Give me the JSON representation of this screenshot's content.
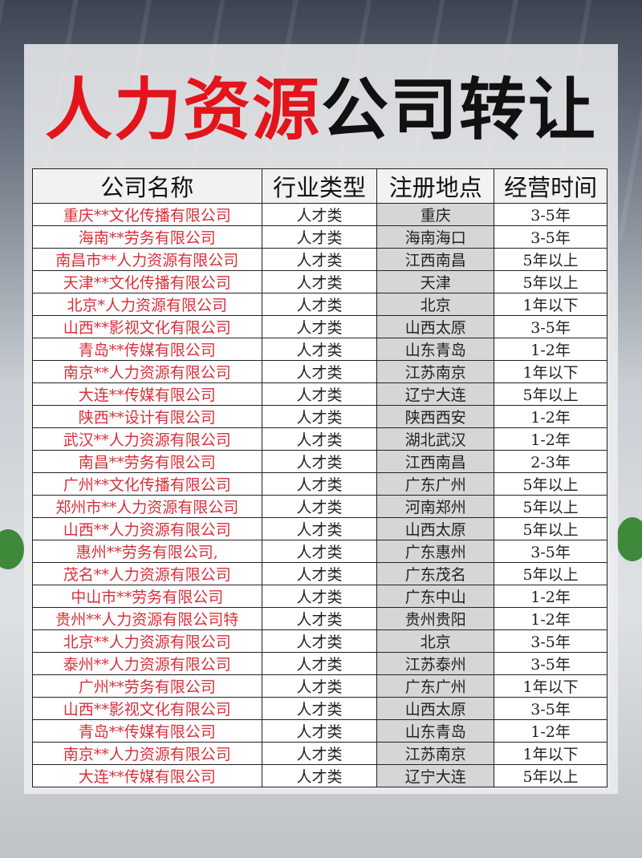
{
  "title": {
    "part1": "人力资源",
    "part2": "公司转让"
  },
  "colors": {
    "title_red": "#e3141b",
    "name_red": "#d8303a",
    "location_bg": "#d6d6d6"
  },
  "table": {
    "headers": [
      "公司名称",
      "行业类型",
      "注册地点",
      "经营时间"
    ],
    "rows": [
      [
        "重庆**文化传播有限公司",
        "人才类",
        "重庆",
        "3-5年"
      ],
      [
        "海南**劳务有限公司",
        "人才类",
        "海南海口",
        "3-5年"
      ],
      [
        "南昌市**人力资源有限公司",
        "人才类",
        "江西南昌",
        "5年以上"
      ],
      [
        "天津**文化传播有限公司",
        "人才类",
        "天津",
        "5年以上"
      ],
      [
        "北京*人力资源有限公司",
        "人才类",
        "北京",
        "1年以下"
      ],
      [
        "山西**影视文化有限公司",
        "人才类",
        "山西太原",
        "3-5年"
      ],
      [
        "青岛**传媒有限公司",
        "人才类",
        "山东青岛",
        "1-2年"
      ],
      [
        "南京**人力资源有限公司",
        "人才类",
        "江苏南京",
        "1年以下"
      ],
      [
        "大连**传媒有限公司",
        "人才类",
        "辽宁大连",
        "5年以上"
      ],
      [
        "陕西**设计有限公司",
        "人才类",
        "陕西西安",
        "1-2年"
      ],
      [
        "武汉**人力资源有限公司",
        "人才类",
        "湖北武汉",
        "1-2年"
      ],
      [
        "南昌**劳务有限公司",
        "人才类",
        "江西南昌",
        "2-3年"
      ],
      [
        "广州**文化传播有限公司",
        "人才类",
        "广东广州",
        "5年以上"
      ],
      [
        "郑州市**人力资源有限公司",
        "人才类",
        "河南郑州",
        "5年以上"
      ],
      [
        "山西**人力资源有限公司",
        "人才类",
        "山西太原",
        "5年以上"
      ],
      [
        "惠州**劳务有限公司,",
        "人才类",
        "广东惠州",
        "3-5年"
      ],
      [
        "茂名**人力资源有限公司",
        "人才类",
        "广东茂名",
        "5年以上"
      ],
      [
        "中山市**劳务有限公司",
        "人才类",
        "广东中山",
        "1-2年"
      ],
      [
        "贵州**人力资源有限公司特",
        "人才类",
        "贵州贵阳",
        "1-2年"
      ],
      [
        "北京**人力资源有限公司",
        "人才类",
        "北京",
        "3-5年"
      ],
      [
        "泰州**人力资源有限公司",
        "人才类",
        "江苏泰州",
        "3-5年"
      ],
      [
        "广州**劳务有限公司",
        "人才类",
        "广东广州",
        "1年以下"
      ],
      [
        "山西**影视文化有限公司",
        "人才类",
        "山西太原",
        "3-5年"
      ],
      [
        "青岛**传媒有限公司",
        "人才类",
        "山东青岛",
        "1-2年"
      ],
      [
        "南京**人力资源有限公司",
        "人才类",
        "江苏南京",
        "1年以下"
      ],
      [
        "大连**传媒有限公司",
        "人才类",
        "辽宁大连",
        "5年以上"
      ]
    ]
  }
}
